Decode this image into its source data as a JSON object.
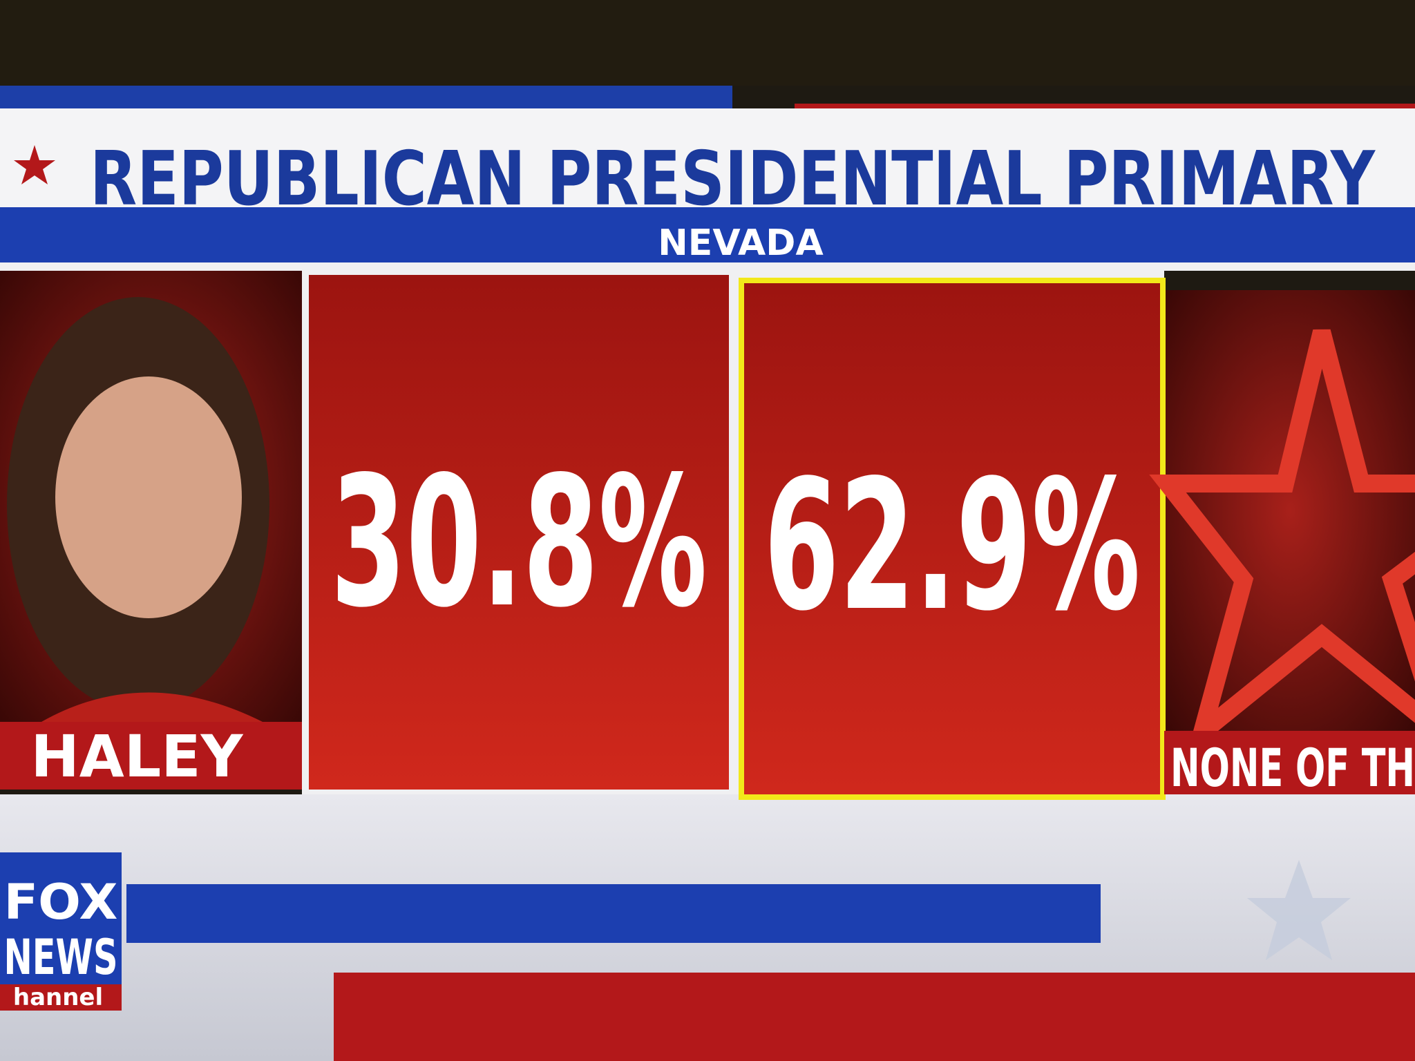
{
  "header": {
    "title": "REPUBLICAN PRESIDENTIAL PRIMARY",
    "subtitle": "NEVADA"
  },
  "candidates": [
    {
      "name": "HALEY",
      "percent": "30.8%"
    },
    {
      "name": "NONE OF TH",
      "percent": "62.9%"
    }
  ],
  "logo": {
    "line1": "FOX",
    "line2": "NEWS",
    "line3": "hannel"
  }
}
